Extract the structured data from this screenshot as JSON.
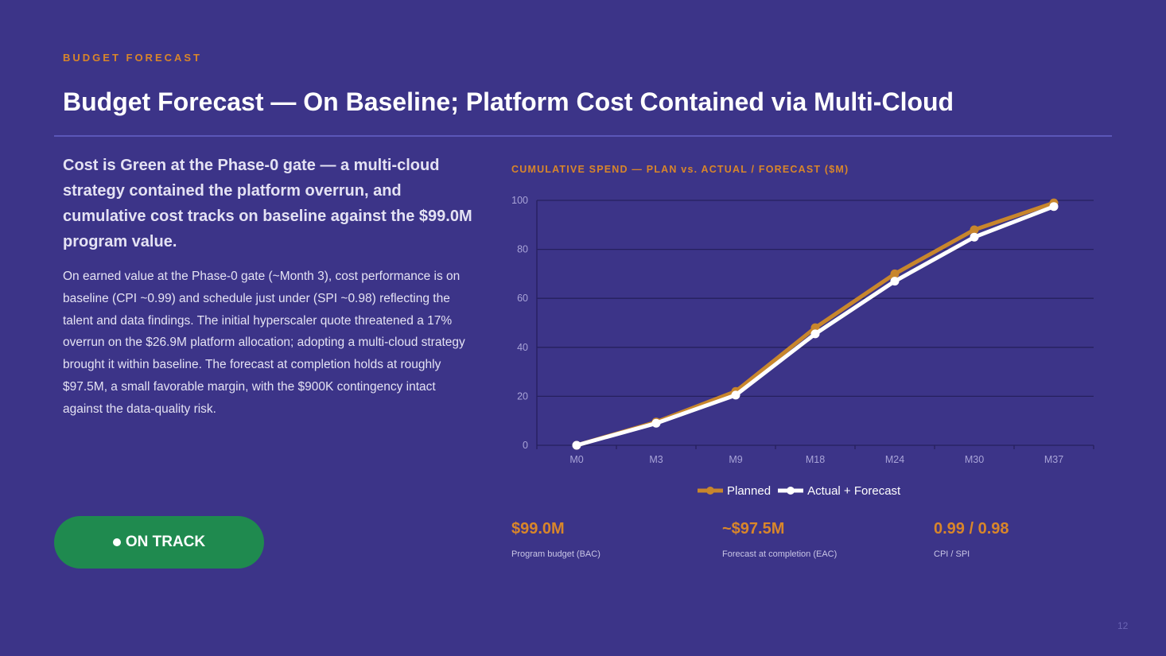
{
  "eyebrow": "BUDGET FORECAST",
  "title": "Budget Forecast — On Baseline; Platform Cost Contained via Multi-Cloud",
  "lead": "Cost is Green at the Phase-0 gate — a multi-cloud strategy contained the platform overrun, and cumulative cost tracks on baseline against the $99.0M program value.",
  "body": "On earned value at the Phase-0 gate (~Month 3), cost performance is on baseline (CPI ~0.99) and schedule just under (SPI ~0.98) reflecting the talent and data findings. The initial hyperscaler quote threatened a 17% overrun on the $26.9M platform allocation; adopting a multi-cloud strategy brought it within baseline. The forecast at completion holds at roughly $97.5M, a small favorable margin, with the $900K contingency intact against the data-quality risk.",
  "status": {
    "label": "ON TRACK",
    "color": "#1f8a4f"
  },
  "colors": {
    "accent": "#d9862a",
    "background": "#3c3488",
    "planned": "#c8862c",
    "actual": "#ffffff"
  },
  "chart_data": {
    "type": "line",
    "title": "CUMULATIVE SPEND — PLAN vs. ACTUAL / FORECAST ($M)",
    "categories": [
      "M0",
      "M3",
      "M9",
      "M18",
      "M24",
      "M30",
      "M37"
    ],
    "series": [
      {
        "name": "Planned",
        "values": [
          0,
          9.5,
          22,
          48,
          70,
          88,
          99
        ],
        "color": "#c8862c"
      },
      {
        "name": "Actual + Forecast",
        "values": [
          0,
          9,
          20.5,
          45.5,
          67,
          85,
          97.5
        ],
        "color": "#ffffff"
      }
    ],
    "ylim": [
      0,
      100
    ],
    "yticks": [
      0,
      20,
      40,
      60,
      80,
      100
    ],
    "grid": true,
    "legend": "bottom-center"
  },
  "kpis": [
    {
      "value": "$99.0M",
      "label": "Program budget (BAC)"
    },
    {
      "value": "~$97.5M",
      "label": "Forecast at completion (EAC)"
    },
    {
      "value": "0.99 / 0.98",
      "label": "CPI / SPI"
    }
  ],
  "page_number": "12"
}
